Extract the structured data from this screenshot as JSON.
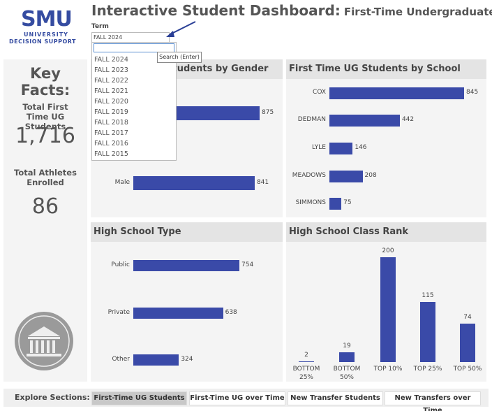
{
  "header": {
    "logo": "SMU",
    "logo_line1": "UNIVERSITY",
    "logo_line2": "DECISION SUPPORT",
    "title": "Interactive Student Dashboard:",
    "subtitle": "First-Time Undergraduate Students"
  },
  "term_filter": {
    "label": "Term",
    "selected": "FALL 2024",
    "search_tooltip": "Search (Enter)",
    "options": [
      "FALL 2024",
      "FALL 2023",
      "FALL 2022",
      "FALL 2021",
      "FALL 2020",
      "FALL 2019",
      "FALL 2018",
      "FALL 2017",
      "FALL 2016",
      "FALL 2015"
    ]
  },
  "key_facts": {
    "title": "Key Facts:",
    "total_label": "Total First Time UG Students",
    "total_value": "1,716",
    "athletes_label": "Total Athletes Enrolled",
    "athletes_value": "86"
  },
  "chart_data": [
    {
      "type": "hbar",
      "title": "First Time UG Students by Gender",
      "categories": [
        null,
        "Male"
      ],
      "values": [
        875,
        841
      ],
      "color": "#3a4aa8"
    },
    {
      "type": "hbar",
      "title": "First Time UG Students by School",
      "categories": [
        "COX",
        "DEDMAN",
        "LYLE",
        "MEADOWS",
        "SIMMONS"
      ],
      "values": [
        845,
        442,
        146,
        208,
        75
      ],
      "color": "#3a4aa8"
    },
    {
      "type": "hbar",
      "title": "High School Type",
      "categories": [
        "Public",
        "Private",
        "Other"
      ],
      "values": [
        754,
        638,
        324
      ],
      "color": "#3a4aa8"
    },
    {
      "type": "bar",
      "title": "High School Class Rank",
      "categories": [
        "BOTTOM 25%",
        "BOTTOM 50%",
        "TOP 10%",
        "TOP 25%",
        "TOP 50%"
      ],
      "values": [
        2,
        19,
        200,
        115,
        74
      ],
      "color": "#3a4aa8"
    }
  ],
  "footer": {
    "label": "Explore Sections:",
    "buttons": [
      "First-Time UG Students",
      "First-Time UG over Time",
      "New Transfer Students",
      "New Transfers over Time"
    ]
  }
}
